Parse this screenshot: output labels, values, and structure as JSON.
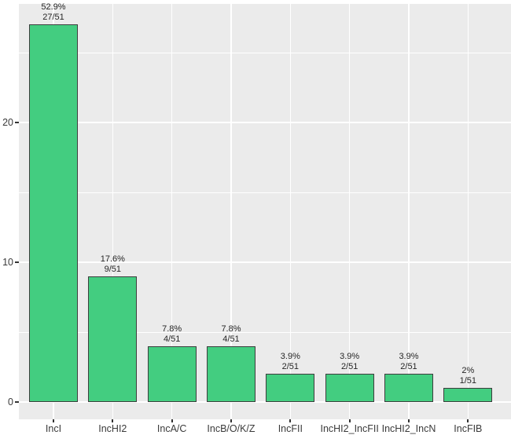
{
  "figure": {
    "kind": "static-bar-plot",
    "colors": {
      "outer_background": "#ffffff",
      "panel_background": "#ebebeb",
      "gridline": "#ffffff",
      "bar_fill": "#43cd80",
      "bar_border": "#3d3d3d",
      "axis_text": "#3a3a3a",
      "bar_label_text": "#262626",
      "tick_mark": "#333333"
    }
  },
  "chart_data": {
    "type": "bar",
    "title": "",
    "xlabel": "",
    "ylabel": "",
    "categories": [
      "IncI",
      "IncHI2",
      "IncA/C",
      "IncB/O/K/Z",
      "IncFII",
      "IncHI2_IncFII",
      "IncHI2_IncN",
      "IncFIB"
    ],
    "values": [
      27,
      9,
      4,
      4,
      2,
      2,
      2,
      1
    ],
    "bar_labels": [
      {
        "percent": "52.9%",
        "fraction": "27/51"
      },
      {
        "percent": "17.6%",
        "fraction": "9/51"
      },
      {
        "percent": "7.8%",
        "fraction": "4/51"
      },
      {
        "percent": "7.8%",
        "fraction": "4/51"
      },
      {
        "percent": "3.9%",
        "fraction": "2/51"
      },
      {
        "percent": "3.9%",
        "fraction": "2/51"
      },
      {
        "percent": "3.9%",
        "fraction": "2/51"
      },
      {
        "percent": "2%",
        "fraction": "1/51"
      }
    ],
    "yticks": [
      0,
      10,
      20
    ],
    "yticklabels": [
      "0",
      "10",
      "20"
    ],
    "minor_ytick_positions": [
      5,
      15,
      25
    ],
    "ylim": [
      -1.35,
      28.35
    ],
    "grid": true,
    "gridlines_vertical_at_categories": true,
    "legend_position": "none"
  }
}
